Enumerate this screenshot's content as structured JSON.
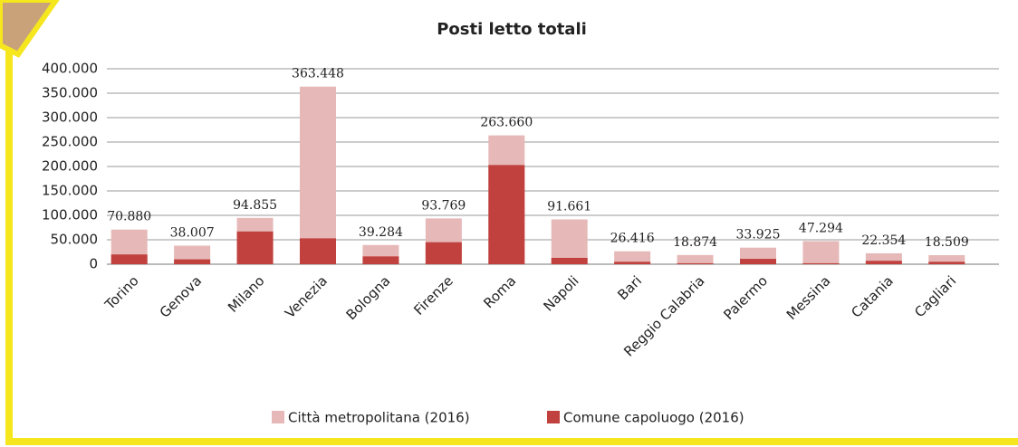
{
  "chart_data": {
    "type": "bar",
    "title": "Posti letto totali",
    "categories": [
      "Torino",
      "Genova",
      "Milano",
      "Venezia",
      "Bologna",
      "Firenze",
      "Roma",
      "Napoli",
      "Bari",
      "Reggio Calabria",
      "Palermo",
      "Messina",
      "Catania",
      "Cagliari"
    ],
    "series": [
      {
        "name": "Città metropolitana (2016)",
        "color": "#e6b9b8",
        "values": [
          70880,
          38007,
          94855,
          363448,
          39284,
          93769,
          263660,
          91661,
          26416,
          18874,
          33925,
          47294,
          22354,
          18509
        ],
        "value_labels": [
          "70.880",
          "38.007",
          "94.855",
          "363.448",
          "39.284",
          "93.769",
          "263.660",
          "91.661",
          "26.416",
          "18.874",
          "33.925",
          "47.294",
          "22.354",
          "18.509"
        ]
      },
      {
        "name": "Comune capoluogo (2016)",
        "color": "#c0413e",
        "values": [
          20000,
          10000,
          67000,
          53000,
          16000,
          45000,
          203000,
          13000,
          5000,
          2000,
          11000,
          2000,
          7000,
          5000
        ]
      }
    ],
    "ylim": [
      0,
      400000
    ],
    "yticks": [
      0,
      {
        "value": 50000,
        "label": "50.000"
      },
      {
        "value": 100000,
        "label": "100.000"
      },
      {
        "value": 150000,
        "label": "150.000"
      },
      {
        "value": 200000,
        "label": "200.000"
      },
      {
        "value": 250000,
        "label": "250.000"
      },
      {
        "value": 300000,
        "label": "300.000"
      },
      {
        "value": 350000,
        "label": "350.000"
      },
      {
        "value": 400000,
        "label": "400.000"
      }
    ],
    "grid": true
  }
}
